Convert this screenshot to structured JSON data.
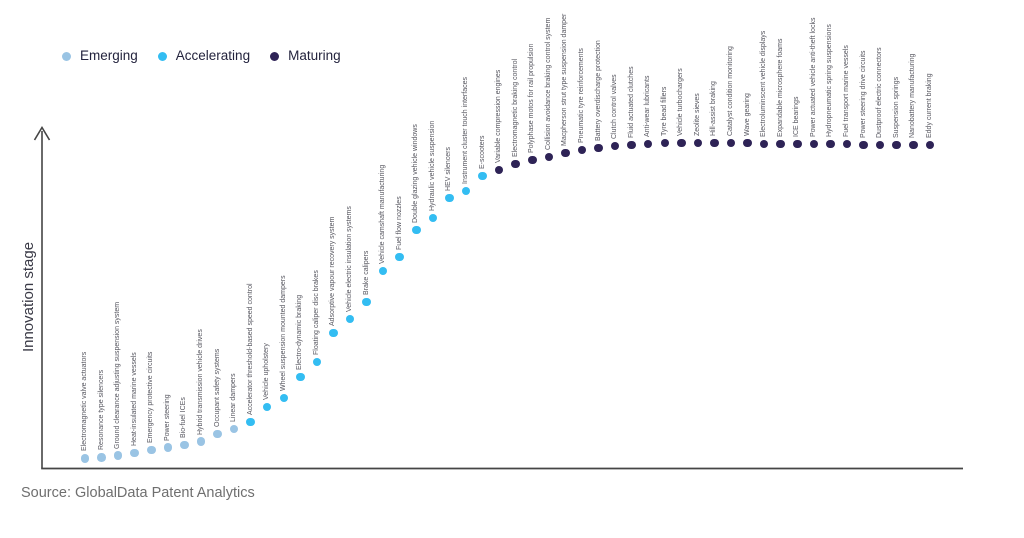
{
  "source": "Source: GlobalData Patent Analytics",
  "chart_data": {
    "type": "scatter",
    "title": "",
    "xlabel": "",
    "ylabel": "Innovation stage",
    "grid": false,
    "legend_position": "top-left",
    "y_axis": {
      "has_arrow": true,
      "ticks": "none",
      "value_scale": "0-100 relative innovation stage (estimated from pixel positions)"
    },
    "stages": [
      {
        "id": "emerging",
        "label": "Emerging",
        "color": "#9AC4E4"
      },
      {
        "id": "accelerating",
        "label": "Accelerating",
        "color": "#33BDF2"
      },
      {
        "id": "maturing",
        "label": "Maturing",
        "color": "#2E2356"
      }
    ],
    "items": [
      {
        "label": "Electromagnetic valve actuators",
        "stage": "emerging",
        "value": 0.5
      },
      {
        "label": "Resonance type silencers",
        "stage": "emerging",
        "value": 0.8
      },
      {
        "label": "Ground clearance adjusting suspension system",
        "stage": "emerging",
        "value": 1.4
      },
      {
        "label": "Heat-insulated marine vessels",
        "stage": "emerging",
        "value": 2.2
      },
      {
        "label": "Emergency protective circuits",
        "stage": "emerging",
        "value": 3.2
      },
      {
        "label": "Power steering",
        "stage": "emerging",
        "value": 3.9
      },
      {
        "label": "Bio-fuel ICEs",
        "stage": "emerging",
        "value": 4.8
      },
      {
        "label": "Hybrid transmission vehicle drives",
        "stage": "emerging",
        "value": 5.8
      },
      {
        "label": "Occupant safety systems",
        "stage": "emerging",
        "value": 8.2
      },
      {
        "label": "Linear dampers",
        "stage": "emerging",
        "value": 9.8
      },
      {
        "label": "Accelerator threshold-based speed control",
        "stage": "accelerating",
        "value": 12.0
      },
      {
        "label": "Vehicle upholstery",
        "stage": "accelerating",
        "value": 16.7
      },
      {
        "label": "Wheel suspension mounted dampers",
        "stage": "accelerating",
        "value": 19.6
      },
      {
        "label": "Electro-dynamic braking",
        "stage": "accelerating",
        "value": 26.2
      },
      {
        "label": "Floating caliper disc brakes",
        "stage": "accelerating",
        "value": 30.9
      },
      {
        "label": "Adsorptive vapour recovery system",
        "stage": "accelerating",
        "value": 40.1
      },
      {
        "label": "Vehicle electric insulation systems",
        "stage": "accelerating",
        "value": 44.5
      },
      {
        "label": "Brake calipers",
        "stage": "accelerating",
        "value": 49.8
      },
      {
        "label": "Vehicle camshaft manufacturing",
        "stage": "accelerating",
        "value": 59.6
      },
      {
        "label": "Fuel flow nozzles",
        "stage": "accelerating",
        "value": 64.0
      },
      {
        "label": "Double glazing vehicle windows",
        "stage": "accelerating",
        "value": 72.6
      },
      {
        "label": "Hydraulic vehicle suspension",
        "stage": "accelerating",
        "value": 76.3
      },
      {
        "label": "HEV silencers",
        "stage": "accelerating",
        "value": 82.6
      },
      {
        "label": "Instrument cluster touch interfaces",
        "stage": "accelerating",
        "value": 84.8
      },
      {
        "label": "E-scooters",
        "stage": "accelerating",
        "value": 89.6
      },
      {
        "label": "Variable compression engines",
        "stage": "maturing",
        "value": 91.5
      },
      {
        "label": "Electromagnetic braking control",
        "stage": "maturing",
        "value": 93.4
      },
      {
        "label": "Polyphase motos for rail propulsion",
        "stage": "maturing",
        "value": 94.6
      },
      {
        "label": "Collision avoidance braking control system",
        "stage": "maturing",
        "value": 95.6
      },
      {
        "label": "Macpherson strut type suspension damper",
        "stage": "maturing",
        "value": 96.8
      },
      {
        "label": "Pneumatic tyre reinforcements",
        "stage": "maturing",
        "value": 97.8
      },
      {
        "label": "Battery overdischarge protection",
        "stage": "maturing",
        "value": 98.4
      },
      {
        "label": "Clutch control valves",
        "stage": "maturing",
        "value": 99.1
      },
      {
        "label": "Fluid actuated clutches",
        "stage": "maturing",
        "value": 99.4
      },
      {
        "label": "Anti-wear lubricants",
        "stage": "maturing",
        "value": 99.7
      },
      {
        "label": "Tyre bead fillers",
        "stage": "maturing",
        "value": 100
      },
      {
        "label": "Vehicle turbochargers",
        "stage": "maturing",
        "value": 100
      },
      {
        "label": "Zeolite sieves",
        "stage": "maturing",
        "value": 100
      },
      {
        "label": "Hill-assist braking",
        "stage": "maturing",
        "value": 100
      },
      {
        "label": "Catalyst condition monitoring",
        "stage": "maturing",
        "value": 100
      },
      {
        "label": "Wave gearing",
        "stage": "maturing",
        "value": 100
      },
      {
        "label": "Electroluminscent vehicle displays",
        "stage": "maturing",
        "value": 99.7
      },
      {
        "label": "Expandable microsphere foams",
        "stage": "maturing",
        "value": 99.7
      },
      {
        "label": "ICE bearings",
        "stage": "maturing",
        "value": 99.7
      },
      {
        "label": "Power actuated vehicle anti-theft locks",
        "stage": "maturing",
        "value": 99.7
      },
      {
        "label": "Hydropneumatic spring suspensions",
        "stage": "maturing",
        "value": 99.7
      },
      {
        "label": "Fuel transport marine vessels",
        "stage": "maturing",
        "value": 99.7
      },
      {
        "label": "Power steering drive circuits",
        "stage": "maturing",
        "value": 99.4
      },
      {
        "label": "Dustproof electric connectors",
        "stage": "maturing",
        "value": 99.4
      },
      {
        "label": "Suspension springs",
        "stage": "maturing",
        "value": 99.4
      },
      {
        "label": "Nanobattery manufacturing",
        "stage": "maturing",
        "value": 99.4
      },
      {
        "label": "Eddy current braking",
        "stage": "maturing",
        "value": 99.4
      }
    ]
  }
}
